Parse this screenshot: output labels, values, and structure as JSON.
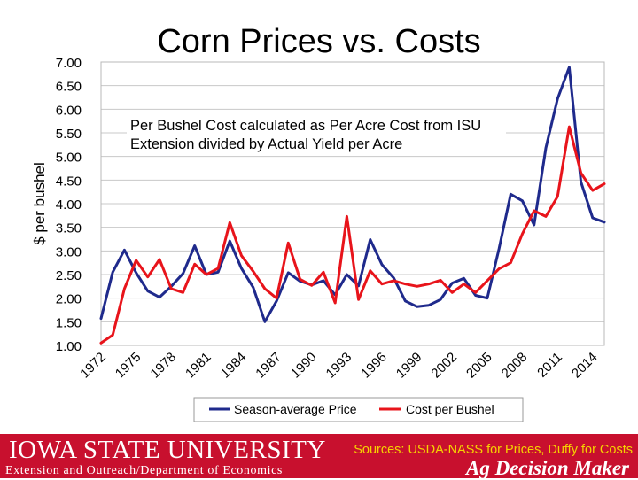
{
  "chart_data": {
    "type": "line",
    "title": "Corn Prices vs. Costs",
    "ylabel": "$ per bushel",
    "xlabel": "",
    "annotation": "Per Bushel Cost calculated as Per Acre Cost from ISU Extension divided by Actual Yield per Acre",
    "ylim": [
      1.0,
      7.0
    ],
    "yticks": [
      "1.00",
      "1.50",
      "2.00",
      "2.50",
      "3.00",
      "3.50",
      "4.00",
      "4.50",
      "5.00",
      "5.50",
      "6.00",
      "6.50",
      "7.00"
    ],
    "xticks": [
      "1972",
      "1975",
      "1978",
      "1981",
      "1984",
      "1987",
      "1990",
      "1993",
      "1996",
      "1999",
      "2002",
      "2005",
      "2008",
      "2011",
      "2014"
    ],
    "xlim": [
      1972,
      2015
    ],
    "grid": true,
    "legend_position": "bottom",
    "series": [
      {
        "name": "Season-average Price",
        "color": "#1f2a8c",
        "x": [
          1972,
          1973,
          1974,
          1975,
          1976,
          1977,
          1978,
          1979,
          1980,
          1981,
          1982,
          1983,
          1984,
          1985,
          1986,
          1987,
          1988,
          1989,
          1990,
          1991,
          1992,
          1993,
          1994,
          1995,
          1996,
          1997,
          1998,
          1999,
          2000,
          2001,
          2002,
          2003,
          2004,
          2005,
          2006,
          2007,
          2008,
          2009,
          2010,
          2011,
          2012,
          2013,
          2014,
          2015
        ],
        "values": [
          1.57,
          2.55,
          3.02,
          2.54,
          2.15,
          2.02,
          2.25,
          2.52,
          3.11,
          2.5,
          2.55,
          3.21,
          2.63,
          2.23,
          1.5,
          1.94,
          2.54,
          2.36,
          2.28,
          2.37,
          2.07,
          2.5,
          2.26,
          3.24,
          2.71,
          2.43,
          1.94,
          1.82,
          1.85,
          1.97,
          2.32,
          2.42,
          2.06,
          2.0,
          3.04,
          4.2,
          4.06,
          3.55,
          5.18,
          6.22,
          6.89,
          4.46,
          3.7,
          3.61
        ]
      },
      {
        "name": "Cost per Bushel",
        "color": "#e8141b",
        "x": [
          1972,
          1973,
          1974,
          1975,
          1976,
          1977,
          1978,
          1979,
          1980,
          1981,
          1982,
          1983,
          1984,
          1985,
          1986,
          1987,
          1988,
          1989,
          1990,
          1991,
          1992,
          1993,
          1994,
          1995,
          1996,
          1997,
          1998,
          1999,
          2000,
          2001,
          2002,
          2003,
          2004,
          2005,
          2006,
          2007,
          2008,
          2009,
          2010,
          2011,
          2012,
          2013,
          2014,
          2015
        ],
        "values": [
          1.05,
          1.22,
          2.2,
          2.8,
          2.45,
          2.82,
          2.2,
          2.12,
          2.72,
          2.5,
          2.63,
          3.6,
          2.9,
          2.57,
          2.2,
          2.0,
          3.17,
          2.4,
          2.27,
          2.55,
          1.9,
          3.73,
          1.97,
          2.58,
          2.3,
          2.37,
          2.3,
          2.25,
          2.3,
          2.38,
          2.12,
          2.3,
          2.12,
          2.37,
          2.62,
          2.75,
          3.36,
          3.85,
          3.73,
          4.15,
          5.63,
          4.65,
          4.28,
          4.42
        ]
      }
    ]
  },
  "footer": {
    "university": "Iowa State University",
    "sources": "Sources: USDA-NASS for Prices, Duffy for Costs",
    "department": "Extension and Outreach/Department of Economics",
    "program": "Ag Decision Maker"
  },
  "colors": {
    "footer_bg": "#c8102e",
    "sources_text": "#f5d300",
    "grid": "#c8c8c8"
  }
}
